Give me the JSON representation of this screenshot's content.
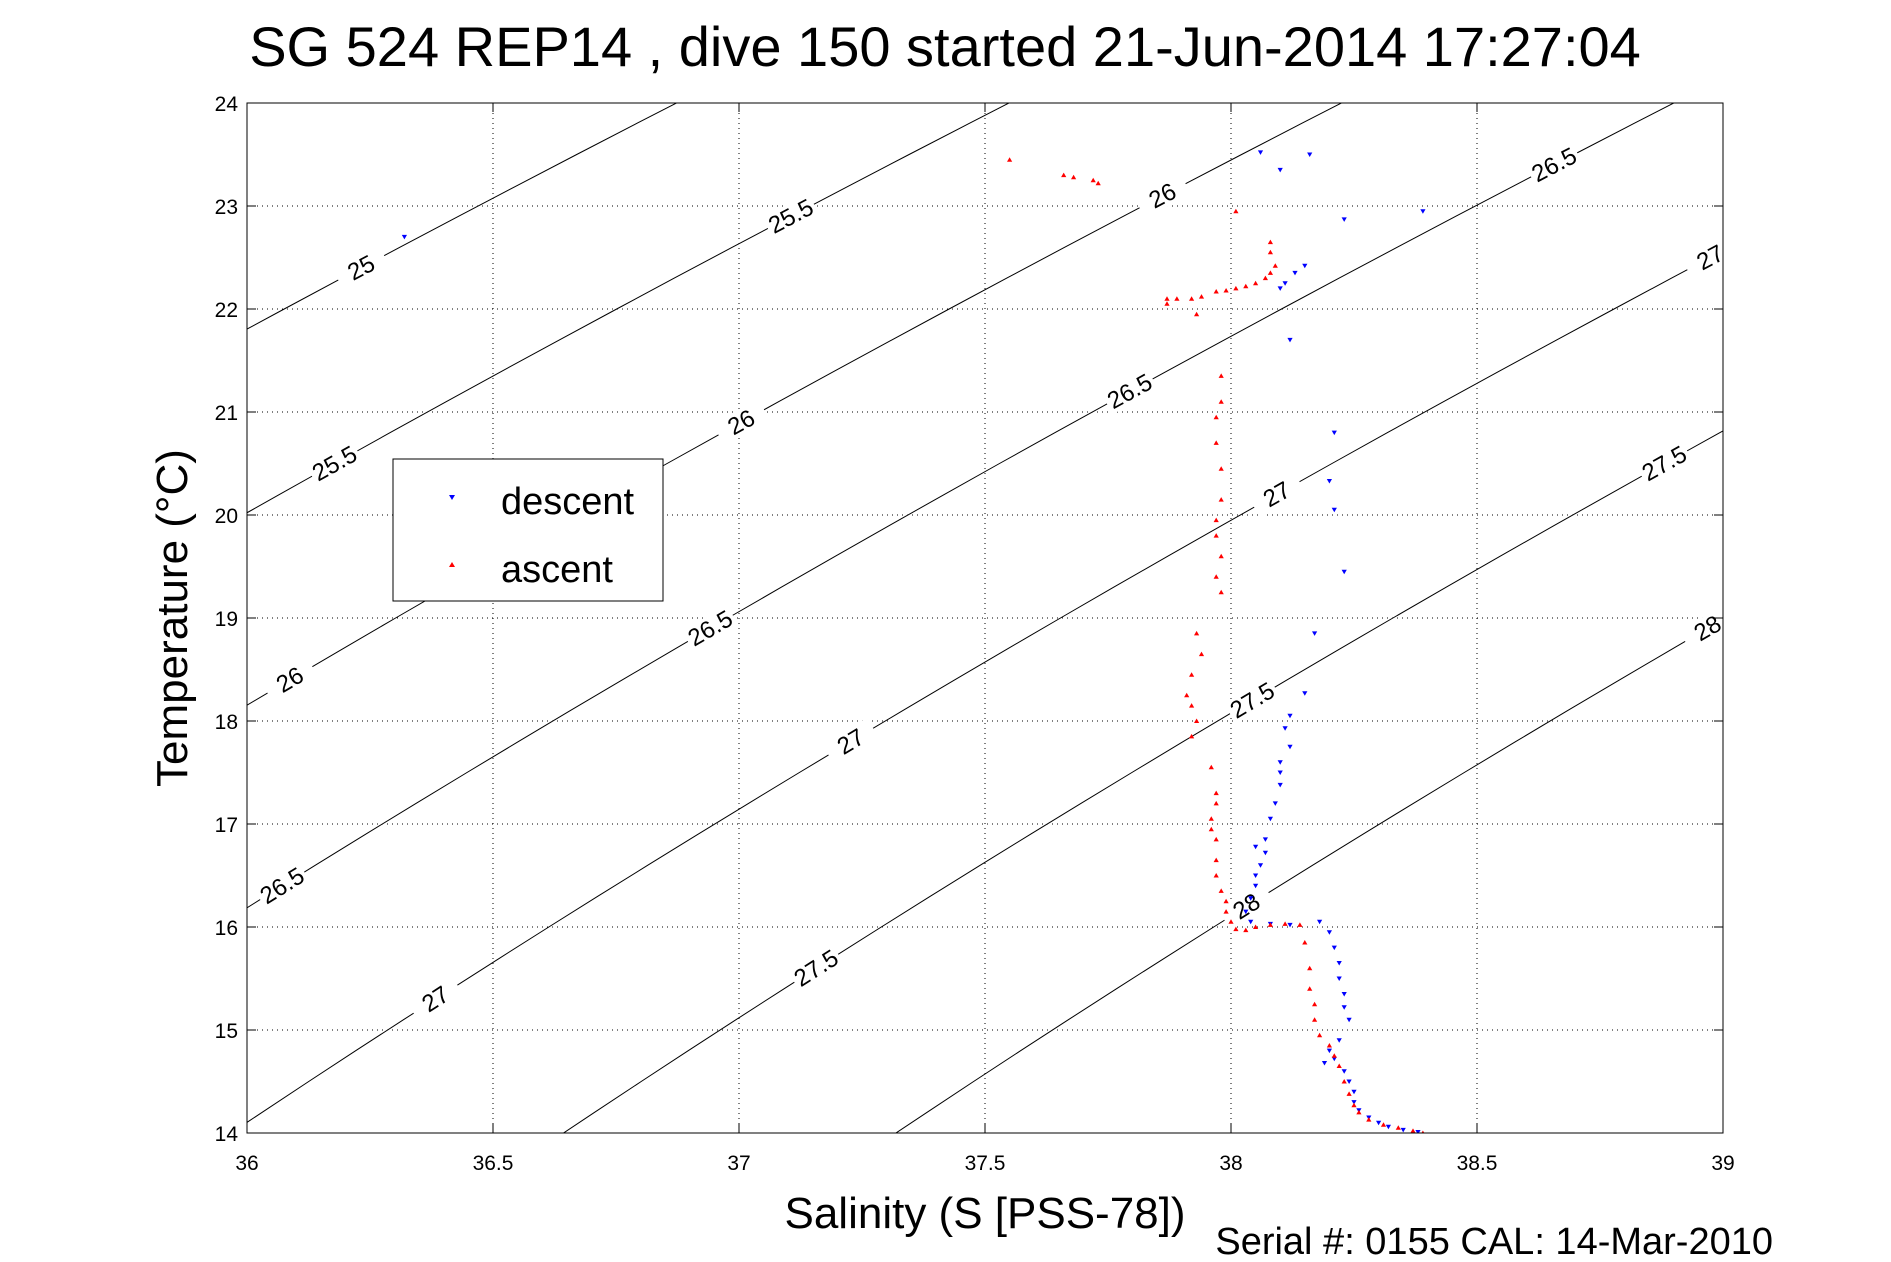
{
  "chart_data": {
    "type": "scatter",
    "title": "SG 524   REP14  , dive 150 started 21-Jun-2014 17:27:04",
    "xlabel": "Salinity (S [PSS-78])",
    "ylabel": "Temperature (°C)",
    "xlim": [
      36,
      39
    ],
    "ylim": [
      14,
      24
    ],
    "xticks": [
      36,
      36.5,
      37,
      37.5,
      38,
      38.5,
      39
    ],
    "xtick_labels": [
      "36",
      "36.5",
      "37",
      "37.5",
      "38",
      "38.5",
      "39"
    ],
    "yticks": [
      14,
      15,
      16,
      17,
      18,
      19,
      20,
      21,
      22,
      23,
      24
    ],
    "ytick_labels": [
      "14",
      "15",
      "16",
      "17",
      "18",
      "19",
      "20",
      "21",
      "22",
      "23",
      "24"
    ],
    "grid": true,
    "grid_style": "dotted",
    "legend_position": "left-middle",
    "footer": "Serial #: 0155  CAL: 14-Mar-2010",
    "density_contours": [
      {
        "sigma": 25,
        "label": "25",
        "label_positions": [
          [
            36.19,
            22.4
          ]
        ]
      },
      {
        "sigma": 25.5,
        "label": "25.5",
        "label_positions": [
          [
            36.18,
            20.5
          ],
          [
            36.97,
            22.9
          ]
        ]
      },
      {
        "sigma": 26,
        "label": "26",
        "label_positions": [
          [
            36.12,
            18.4
          ],
          [
            36.93,
            20.9
          ],
          [
            37.77,
            23.1
          ]
        ]
      },
      {
        "sigma": 26.5,
        "label": "26.5",
        "label_positions": [
          [
            36.13,
            16.4
          ],
          [
            36.92,
            18.9
          ],
          [
            37.74,
            21.2
          ],
          [
            38.55,
            23.4
          ]
        ]
      },
      {
        "sigma": 27,
        "label": "27",
        "label_positions": [
          [
            36.43,
            15.3
          ],
          [
            37.23,
            17.8
          ],
          [
            38.04,
            20.2
          ],
          [
            38.85,
            22.5
          ]
        ]
      },
      {
        "sigma": 27.5,
        "label": "27.5",
        "label_positions": [
          [
            37.2,
            15.6
          ],
          [
            38.0,
            18.2
          ],
          [
            38.81,
            20.5
          ]
        ]
      },
      {
        "sigma": 28,
        "label": "28",
        "label_positions": [
          [
            38.02,
            16.2
          ],
          [
            38.82,
            18.9
          ]
        ]
      }
    ],
    "series": [
      {
        "name": "descent",
        "color": "#0000ff",
        "marker": "down-triangle",
        "points": [
          [
            36.32,
            22.7
          ],
          [
            38.06,
            23.52
          ],
          [
            38.1,
            23.35
          ],
          [
            38.16,
            23.5
          ],
          [
            38.23,
            22.87
          ],
          [
            38.39,
            22.95
          ],
          [
            38.13,
            22.35
          ],
          [
            38.15,
            22.42
          ],
          [
            38.11,
            22.25
          ],
          [
            38.1,
            22.2
          ],
          [
            38.12,
            21.7
          ],
          [
            38.21,
            20.8
          ],
          [
            38.2,
            20.33
          ],
          [
            38.21,
            20.05
          ],
          [
            38.23,
            19.45
          ],
          [
            38.17,
            18.85
          ],
          [
            38.15,
            18.27
          ],
          [
            38.12,
            18.05
          ],
          [
            38.11,
            17.93
          ],
          [
            38.12,
            17.75
          ],
          [
            38.1,
            17.6
          ],
          [
            38.1,
            17.5
          ],
          [
            38.1,
            17.38
          ],
          [
            38.09,
            17.2
          ],
          [
            38.08,
            17.05
          ],
          [
            38.07,
            16.85
          ],
          [
            38.05,
            16.78
          ],
          [
            38.07,
            16.72
          ],
          [
            38.06,
            16.6
          ],
          [
            38.05,
            16.5
          ],
          [
            38.05,
            16.4
          ],
          [
            38.04,
            16.28
          ],
          [
            38.03,
            16.15
          ],
          [
            38.04,
            16.05
          ],
          [
            38.08,
            16.03
          ],
          [
            38.12,
            16.02
          ],
          [
            38.18,
            16.05
          ],
          [
            38.2,
            15.95
          ],
          [
            38.21,
            15.8
          ],
          [
            38.22,
            15.65
          ],
          [
            38.22,
            15.5
          ],
          [
            38.23,
            15.35
          ],
          [
            38.23,
            15.22
          ],
          [
            38.24,
            15.1
          ],
          [
            38.22,
            14.9
          ],
          [
            38.2,
            14.8
          ],
          [
            38.21,
            14.72
          ],
          [
            38.19,
            14.68
          ],
          [
            38.23,
            14.6
          ],
          [
            38.24,
            14.5
          ],
          [
            38.25,
            14.4
          ],
          [
            38.25,
            14.3
          ],
          [
            38.26,
            14.22
          ],
          [
            38.28,
            14.15
          ],
          [
            38.3,
            14.1
          ],
          [
            38.32,
            14.06
          ],
          [
            38.35,
            14.03
          ],
          [
            38.38,
            14.01
          ]
        ]
      },
      {
        "name": "ascent",
        "color": "#ff0000",
        "marker": "up-triangle",
        "points": [
          [
            37.55,
            23.45
          ],
          [
            37.66,
            23.3
          ],
          [
            37.68,
            23.28
          ],
          [
            37.72,
            23.25
          ],
          [
            37.73,
            23.22
          ],
          [
            38.01,
            22.95
          ],
          [
            38.08,
            22.65
          ],
          [
            38.08,
            22.55
          ],
          [
            38.09,
            22.42
          ],
          [
            38.08,
            22.35
          ],
          [
            38.07,
            22.3
          ],
          [
            38.05,
            22.25
          ],
          [
            38.03,
            22.22
          ],
          [
            38.01,
            22.2
          ],
          [
            37.99,
            22.18
          ],
          [
            37.97,
            22.17
          ],
          [
            37.94,
            22.12
          ],
          [
            37.92,
            22.1
          ],
          [
            37.89,
            22.1
          ],
          [
            37.87,
            22.1
          ],
          [
            37.87,
            22.05
          ],
          [
            37.93,
            21.95
          ],
          [
            37.98,
            21.35
          ],
          [
            37.98,
            21.1
          ],
          [
            37.97,
            20.95
          ],
          [
            37.97,
            20.7
          ],
          [
            37.98,
            20.45
          ],
          [
            37.98,
            20.15
          ],
          [
            37.97,
            19.95
          ],
          [
            37.97,
            19.8
          ],
          [
            37.98,
            19.6
          ],
          [
            37.97,
            19.4
          ],
          [
            37.98,
            19.25
          ],
          [
            37.93,
            18.85
          ],
          [
            37.94,
            18.65
          ],
          [
            37.92,
            18.45
          ],
          [
            37.91,
            18.25
          ],
          [
            37.92,
            18.15
          ],
          [
            37.93,
            18.0
          ],
          [
            37.92,
            17.85
          ],
          [
            37.96,
            17.55
          ],
          [
            37.97,
            17.3
          ],
          [
            37.97,
            17.2
          ],
          [
            37.96,
            17.05
          ],
          [
            37.96,
            16.95
          ],
          [
            37.97,
            16.85
          ],
          [
            37.97,
            16.65
          ],
          [
            37.97,
            16.5
          ],
          [
            37.98,
            16.35
          ],
          [
            37.99,
            16.25
          ],
          [
            37.99,
            16.15
          ],
          [
            38.0,
            16.05
          ],
          [
            38.01,
            15.98
          ],
          [
            38.03,
            15.97
          ],
          [
            38.05,
            16.0
          ],
          [
            38.08,
            16.02
          ],
          [
            38.11,
            16.03
          ],
          [
            38.14,
            16.02
          ],
          [
            38.15,
            15.85
          ],
          [
            38.16,
            15.6
          ],
          [
            38.16,
            15.4
          ],
          [
            38.17,
            15.25
          ],
          [
            38.17,
            15.1
          ],
          [
            38.18,
            14.95
          ],
          [
            38.2,
            14.85
          ],
          [
            38.21,
            14.75
          ],
          [
            38.22,
            14.65
          ],
          [
            38.23,
            14.5
          ],
          [
            38.24,
            14.38
          ],
          [
            38.25,
            14.27
          ],
          [
            38.26,
            14.2
          ],
          [
            38.28,
            14.13
          ],
          [
            38.31,
            14.08
          ],
          [
            38.34,
            14.05
          ],
          [
            38.37,
            14.02
          ],
          [
            38.39,
            14.0
          ]
        ]
      }
    ]
  }
}
